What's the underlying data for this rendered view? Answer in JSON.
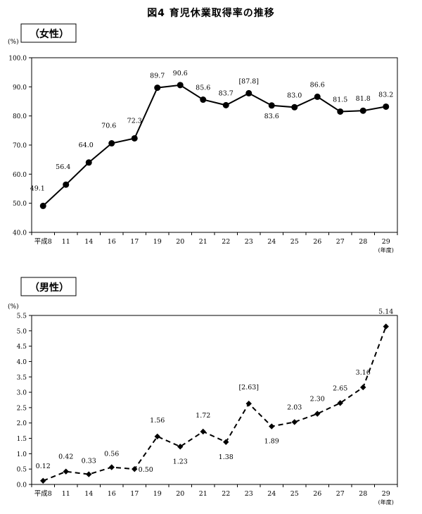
{
  "title": "図4 育児休業取得率の推移",
  "chart_data": [
    {
      "type": "line",
      "panel_label": "（女性）",
      "unit": "(%)",
      "x_unit": "(年度)",
      "categories": [
        "平成8",
        "11",
        "14",
        "16",
        "17",
        "19",
        "20",
        "21",
        "22",
        "23",
        "24",
        "25",
        "26",
        "27",
        "28",
        "29"
      ],
      "series": [
        {
          "values": [
            49.1,
            56.4,
            64.0,
            70.6,
            72.3,
            89.7,
            90.6,
            85.6,
            83.7,
            87.8,
            83.6,
            83.0,
            86.6,
            81.5,
            81.8,
            83.2
          ]
        }
      ],
      "data_labels": [
        "49.1",
        "56.4",
        "64.0",
        "70.6",
        "72.3",
        "89.7",
        "90.6",
        "85.6",
        "83.7",
        "[87.8]",
        "83.6",
        "83.0",
        "86.6",
        "81.5",
        "81.8",
        "83.2"
      ],
      "yticks": [
        "40.0",
        "50.0",
        "60.0",
        "70.0",
        "80.0",
        "90.0",
        "100.0"
      ],
      "ylim": [
        40,
        100
      ],
      "line_style": "solid",
      "marker": "circle",
      "color": "#000000"
    },
    {
      "type": "line",
      "panel_label": "（男性）",
      "unit": "(%)",
      "x_unit": "(年度)",
      "categories": [
        "平成8",
        "11",
        "14",
        "16",
        "17",
        "19",
        "20",
        "21",
        "22",
        "23",
        "24",
        "25",
        "26",
        "27",
        "28",
        "29"
      ],
      "series": [
        {
          "values": [
            0.12,
            0.42,
            0.33,
            0.56,
            0.5,
            1.56,
            1.23,
            1.72,
            1.38,
            2.63,
            1.89,
            2.03,
            2.3,
            2.65,
            3.16,
            5.14
          ]
        }
      ],
      "data_labels": [
        "0.12",
        "0.42",
        "0.33",
        "0.56",
        "0.50",
        "1.56",
        "1.23",
        "1.72",
        "1.38",
        "[2.63]",
        "1.89",
        "2.03",
        "2.30",
        "2.65",
        "3.16",
        "5.14"
      ],
      "yticks": [
        "0.0",
        "0.5",
        "1.0",
        "1.5",
        "2.0",
        "2.5",
        "3.0",
        "3.5",
        "4.0",
        "4.5",
        "5.0",
        "5.5"
      ],
      "ylim": [
        0,
        5.5
      ],
      "line_style": "dashed",
      "marker": "diamond",
      "color": "#000000"
    }
  ]
}
